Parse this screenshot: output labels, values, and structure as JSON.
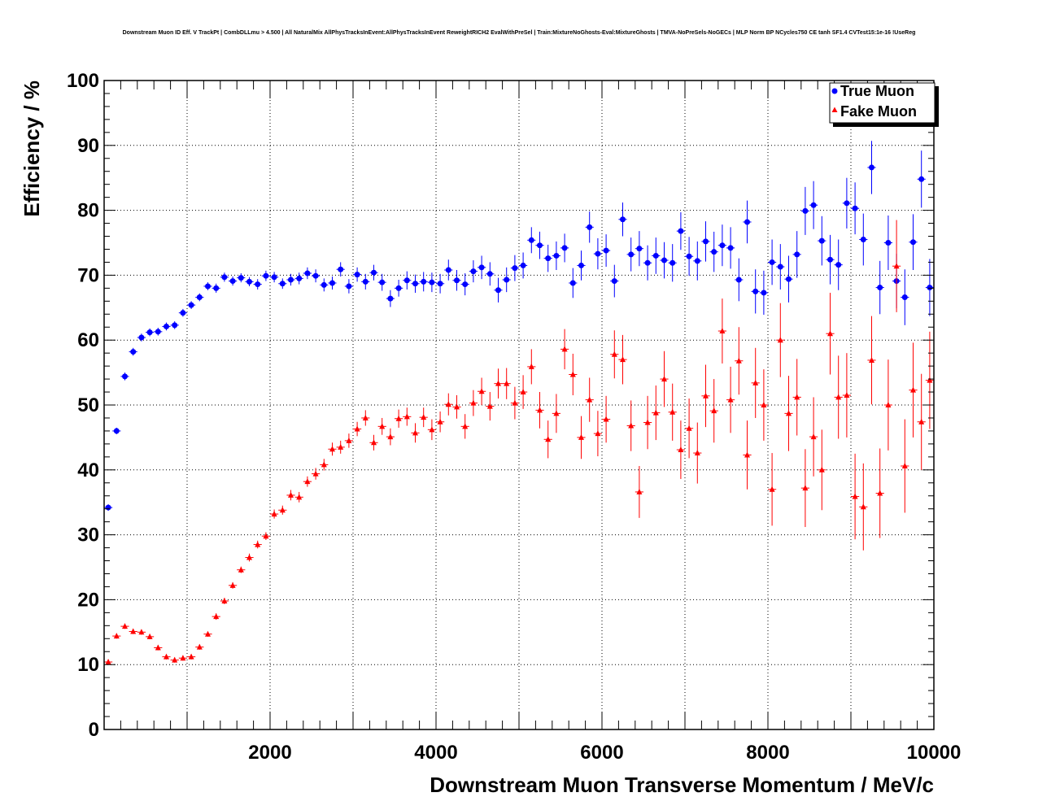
{
  "colors": {
    "true_muon": "#0000ff",
    "fake_muon": "#ff0000",
    "axis": "#000000"
  },
  "chart_data": {
    "type": "scatter",
    "title": "Downstream Muon ID Eff. V TrackPt | CombDLLmu > 4.500 | All NaturalMix AllPhysTracksInEvent:AllPhysTracksInEvent ReweightRICH2 EvalWithPreSel | Train:MixtureNoGhosts-Eval:MixtureGhosts | TMVA-NoPreSels-NoGECs | MLP Norm BP NCycles750 CE tanh SF1.4 CVTest15:1e-16 !UseReg",
    "xlabel": "Downstream Muon Transverse Momentum / MeV/c",
    "ylabel": "Efficiency / %",
    "xlim": [
      0,
      10000
    ],
    "ylim": [
      0,
      100
    ],
    "x_ticks": [
      2000,
      4000,
      6000,
      8000,
      10000
    ],
    "y_ticks": [
      0,
      10,
      20,
      30,
      40,
      50,
      60,
      70,
      80,
      90,
      100
    ],
    "grid": true,
    "legend_position": "top-right",
    "series": [
      {
        "name": "True Muon",
        "marker": "circle",
        "color": "#0000ff",
        "x": [
          50,
          150,
          250,
          350,
          450,
          550,
          650,
          750,
          850,
          950,
          1050,
          1150,
          1250,
          1350,
          1450,
          1550,
          1650,
          1750,
          1850,
          1950,
          2050,
          2150,
          2250,
          2350,
          2450,
          2550,
          2650,
          2750,
          2850,
          2950,
          3050,
          3150,
          3250,
          3350,
          3450,
          3550,
          3650,
          3750,
          3850,
          3950,
          4050,
          4150,
          4250,
          4350,
          4450,
          4550,
          4650,
          4750,
          4850,
          4950,
          5050,
          5150,
          5250,
          5350,
          5450,
          5550,
          5650,
          5750,
          5850,
          5950,
          6050,
          6150,
          6250,
          6350,
          6450,
          6550,
          6650,
          6750,
          6850,
          6950,
          7050,
          7150,
          7250,
          7350,
          7450,
          7550,
          7650,
          7750,
          7850,
          7950,
          8050,
          8150,
          8250,
          8350,
          8450,
          8550,
          8650,
          8750,
          8850,
          8950,
          9050,
          9150,
          9250,
          9350,
          9450,
          9550,
          9650,
          9750,
          9850,
          9950
        ],
        "y": [
          34.2,
          46.0,
          54.4,
          58.2,
          60.4,
          61.2,
          61.3,
          62.1,
          62.3,
          64.2,
          65.4,
          66.6,
          68.3,
          68.0,
          69.7,
          69.1,
          69.6,
          69.0,
          68.6,
          69.9,
          69.7,
          68.7,
          69.3,
          69.5,
          70.3,
          69.9,
          68.5,
          68.8,
          70.9,
          68.3,
          70.1,
          69.0,
          70.4,
          68.9,
          66.4,
          68.0,
          69.2,
          68.7,
          69.0,
          68.9,
          68.7,
          70.8,
          69.2,
          68.6,
          70.6,
          71.2,
          70.2,
          67.7,
          69.3,
          71.1,
          71.5,
          75.4,
          74.6,
          72.6,
          73.0,
          74.2,
          68.8,
          71.5,
          77.4,
          73.3,
          73.8,
          69.1,
          78.6,
          73.2,
          74.1,
          71.9,
          73.0,
          72.3,
          71.9,
          76.8,
          72.9,
          72.2,
          75.2,
          73.6,
          74.6,
          74.2,
          69.3,
          78.2,
          67.5,
          67.3,
          72.0,
          71.3,
          69.4,
          73.2,
          79.9,
          80.8,
          75.3,
          72.4,
          71.6,
          81.1,
          80.3,
          75.5,
          86.6,
          68.1,
          75.0,
          69.1,
          66.6,
          75.1,
          84.8,
          68.1
        ],
        "err": [
          0.5,
          0.5,
          0.6,
          0.6,
          0.6,
          0.6,
          0.6,
          0.6,
          0.6,
          0.6,
          0.6,
          0.6,
          0.6,
          0.7,
          0.7,
          0.7,
          0.7,
          0.7,
          0.8,
          0.8,
          0.8,
          0.8,
          0.9,
          0.9,
          0.9,
          1.0,
          1.0,
          1.0,
          1.1,
          1.1,
          1.1,
          1.2,
          1.2,
          1.3,
          1.3,
          1.3,
          1.4,
          1.4,
          1.5,
          1.5,
          1.5,
          1.6,
          1.6,
          1.7,
          1.7,
          1.8,
          1.8,
          1.9,
          1.9,
          2.0,
          2.0,
          2.0,
          2.1,
          2.1,
          2.2,
          2.2,
          2.3,
          2.3,
          2.4,
          2.4,
          2.5,
          2.5,
          2.6,
          2.6,
          2.7,
          2.7,
          2.8,
          2.8,
          2.9,
          2.9,
          3.0,
          3.0,
          3.1,
          3.1,
          3.2,
          3.2,
          3.3,
          3.3,
          3.4,
          3.4,
          3.5,
          3.5,
          3.6,
          3.6,
          3.7,
          3.7,
          3.8,
          3.8,
          3.9,
          3.9,
          4.0,
          4.0,
          4.1,
          4.1,
          4.2,
          4.2,
          4.3,
          4.3,
          4.4,
          4.4
        ]
      },
      {
        "name": "Fake Muon",
        "marker": "triangle",
        "color": "#ff0000",
        "x": [
          50,
          150,
          250,
          350,
          450,
          550,
          650,
          750,
          850,
          950,
          1050,
          1150,
          1250,
          1350,
          1450,
          1550,
          1650,
          1750,
          1850,
          1950,
          2050,
          2150,
          2250,
          2350,
          2450,
          2550,
          2650,
          2750,
          2850,
          2950,
          3050,
          3150,
          3250,
          3350,
          3450,
          3550,
          3650,
          3750,
          3850,
          3950,
          4050,
          4150,
          4250,
          4350,
          4450,
          4550,
          4650,
          4750,
          4850,
          4950,
          5050,
          5150,
          5250,
          5350,
          5450,
          5550,
          5650,
          5750,
          5850,
          5950,
          6050,
          6150,
          6250,
          6350,
          6450,
          6550,
          6650,
          6750,
          6850,
          6950,
          7050,
          7150,
          7250,
          7350,
          7450,
          7550,
          7650,
          7750,
          7850,
          7950,
          8050,
          8150,
          8250,
          8350,
          8450,
          8550,
          8650,
          8750,
          8850,
          8950,
          9050,
          9150,
          9250,
          9350,
          9450,
          9550,
          9650,
          9750,
          9850,
          9950
        ],
        "y": [
          10.4,
          14.4,
          15.9,
          15.1,
          15.0,
          14.3,
          12.6,
          11.2,
          10.7,
          11.0,
          11.2,
          12.7,
          14.7,
          17.4,
          19.8,
          22.2,
          24.6,
          26.5,
          28.5,
          29.8,
          33.2,
          33.8,
          36.1,
          35.8,
          38.2,
          39.4,
          40.8,
          43.2,
          43.5,
          44.5,
          46.3,
          48.0,
          44.2,
          46.7,
          45.1,
          47.9,
          48.2,
          45.7,
          48.1,
          46.2,
          47.4,
          50.1,
          49.7,
          46.7,
          50.3,
          52.1,
          49.8,
          53.3,
          53.3,
          50.3,
          52.0,
          55.9,
          49.2,
          44.7,
          48.7,
          58.6,
          54.7,
          45.0,
          50.8,
          45.6,
          47.8,
          57.8,
          57.0,
          46.8,
          36.6,
          47.3,
          48.8,
          54.0,
          48.9,
          43.1,
          46.4,
          42.6,
          51.4,
          49.1,
          61.4,
          50.8,
          56.8,
          42.3,
          53.4,
          50.0,
          37.0,
          60.0,
          48.7,
          51.2,
          37.2,
          45.1,
          40.0,
          61.0,
          51.2,
          51.5,
          35.9,
          34.3,
          56.9,
          36.4,
          50.0,
          71.4,
          40.6,
          52.3,
          47.4,
          53.8
        ],
        "err": [
          0.3,
          0.4,
          0.4,
          0.4,
          0.4,
          0.4,
          0.4,
          0.4,
          0.4,
          0.4,
          0.4,
          0.4,
          0.4,
          0.5,
          0.5,
          0.5,
          0.5,
          0.6,
          0.6,
          0.6,
          0.7,
          0.7,
          0.8,
          0.8,
          0.8,
          0.9,
          0.9,
          1.0,
          1.0,
          1.1,
          1.1,
          1.2,
          1.2,
          1.3,
          1.3,
          1.4,
          1.4,
          1.5,
          1.5,
          1.6,
          1.6,
          1.7,
          1.8,
          1.9,
          2.0,
          2.1,
          2.2,
          2.3,
          2.4,
          2.5,
          2.6,
          2.7,
          2.8,
          2.9,
          3.0,
          3.1,
          3.2,
          3.3,
          3.4,
          3.5,
          3.6,
          3.7,
          3.8,
          3.9,
          4.0,
          4.1,
          4.2,
          4.3,
          4.4,
          4.5,
          4.6,
          4.7,
          4.8,
          4.9,
          5.0,
          5.1,
          5.2,
          5.3,
          5.4,
          5.5,
          5.6,
          5.7,
          5.8,
          5.9,
          6.0,
          6.1,
          6.2,
          6.3,
          6.4,
          6.5,
          6.6,
          6.7,
          6.8,
          6.9,
          7.0,
          7.1,
          7.2,
          7.3,
          7.4,
          7.5
        ]
      }
    ]
  }
}
